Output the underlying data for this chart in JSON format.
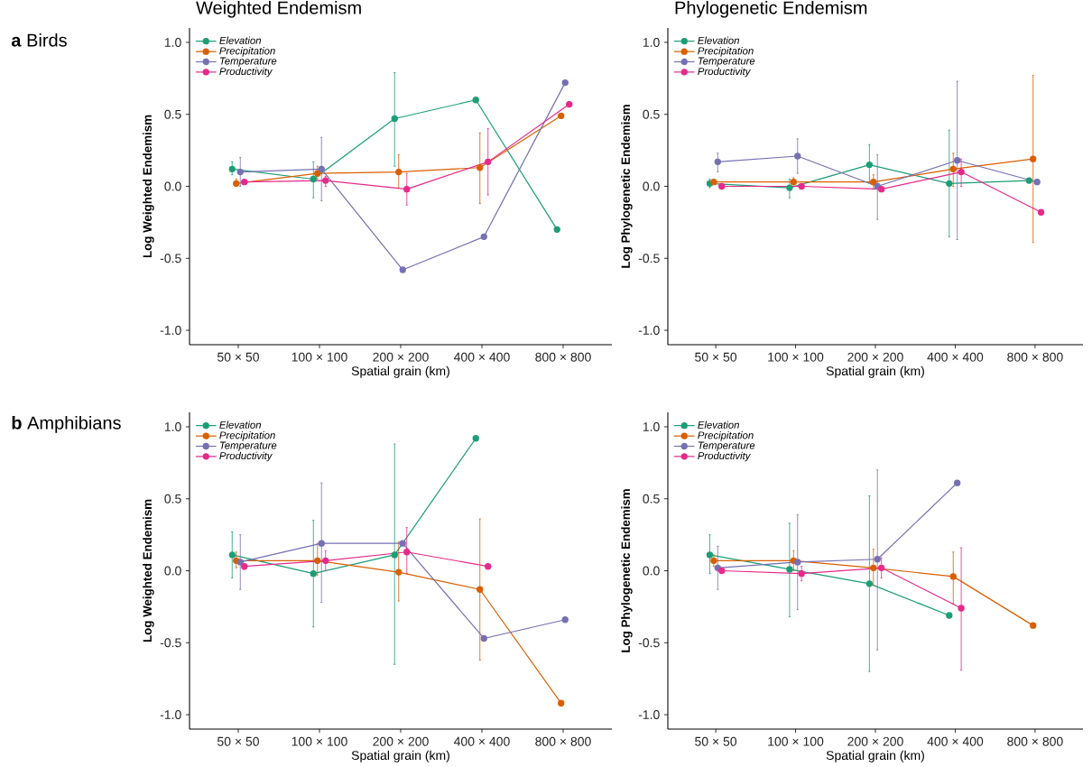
{
  "chart_data": [
    {
      "type": "line",
      "title": "Weighted Endemism",
      "annotations": [
        "**a** Birds"
      ],
      "xlabel": "Spatial grain (km)",
      "ylabel": "Log Weighted Endemism",
      "categories": [
        "50 × 50",
        "100 × 100",
        "200 × 200",
        "400 × 400",
        "800 × 800"
      ],
      "ylim": [
        -1.1,
        1.1
      ],
      "yticks": [
        {
          "value": -1,
          "label": "-1.0"
        },
        {
          "value": -0.5,
          "label": "-0.5"
        },
        {
          "value": 0,
          "label": "0.0"
        },
        {
          "value": 0.5,
          "label": "0.5"
        },
        {
          "value": 1,
          "label": "1.0"
        }
      ],
      "legend": "top left",
      "marker": "circle",
      "series": [
        {
          "name": "Elevation",
          "color": "#1b9e77",
          "values": [
            0.12,
            0.05,
            0.47,
            0.6,
            -0.3
          ],
          "errors": [
            [
              0.08,
              0.17
            ],
            [
              -0.08,
              0.17
            ],
            [
              0.14,
              0.79
            ],
            null,
            null
          ]
        },
        {
          "name": "Precipitation",
          "color": "#d95f02",
          "values": [
            0.02,
            0.09,
            0.1,
            0.13,
            0.49
          ],
          "errors": [
            [
              0.0,
              0.05
            ],
            [
              0.05,
              0.14
            ],
            [
              -0.01,
              0.22
            ],
            [
              -0.12,
              0.37
            ],
            null
          ]
        },
        {
          "name": "Temperature",
          "color": "#7570b3",
          "values": [
            0.1,
            0.12,
            -0.58,
            -0.35,
            0.72
          ],
          "errors": [
            [
              0.0,
              0.2
            ],
            [
              -0.1,
              0.34
            ],
            null,
            null,
            null
          ]
        },
        {
          "name": "Productivity",
          "color": "#e7298a",
          "values": [
            0.03,
            0.04,
            -0.02,
            0.17,
            0.57
          ],
          "errors": [
            null,
            [
              0.0,
              0.07
            ],
            [
              -0.13,
              0.09
            ],
            [
              -0.06,
              0.4
            ],
            null
          ]
        }
      ]
    },
    {
      "type": "line",
      "title": "Phylogenetic Endemism",
      "xlabel": "Spatial grain (km)",
      "ylabel": "Log Phylogenetic Endemism",
      "categories": [
        "50 × 50",
        "100 × 100",
        "200 × 200",
        "400 × 400",
        "800 × 800"
      ],
      "ylim": [
        -1.1,
        1.1
      ],
      "yticks": [
        {
          "value": -1,
          "label": "-1.0"
        },
        {
          "value": -0.5,
          "label": "-0.5"
        },
        {
          "value": 0,
          "label": "0.0"
        },
        {
          "value": 0.5,
          "label": "0.5"
        },
        {
          "value": 1,
          "label": "1.0"
        }
      ],
      "legend": "top left",
      "marker": "circle",
      "series": [
        {
          "name": "Elevation",
          "color": "#1b9e77",
          "values": [
            0.02,
            -0.01,
            0.15,
            0.02,
            0.04
          ],
          "errors": [
            [
              -0.01,
              0.05
            ],
            [
              -0.08,
              0.05
            ],
            [
              0.02,
              0.29
            ],
            [
              -0.35,
              0.39
            ],
            null
          ]
        },
        {
          "name": "Precipitation",
          "color": "#d95f02",
          "values": [
            0.03,
            0.03,
            0.03,
            0.12,
            0.19
          ],
          "errors": [
            null,
            [
              0.0,
              0.06
            ],
            [
              -0.02,
              0.08
            ],
            [
              0.0,
              0.23
            ],
            [
              -0.39,
              0.77
            ]
          ]
        },
        {
          "name": "Temperature",
          "color": "#7570b3",
          "values": [
            0.17,
            0.21,
            0.0,
            0.18,
            0.03
          ],
          "errors": [
            [
              0.1,
              0.23
            ],
            [
              0.09,
              0.33
            ],
            [
              -0.23,
              0.22
            ],
            [
              -0.37,
              0.73
            ],
            null
          ]
        },
        {
          "name": "Productivity",
          "color": "#e7298a",
          "values": [
            0.0,
            0.0,
            -0.02,
            0.1,
            -0.18
          ],
          "errors": [
            null,
            null,
            null,
            [
              0.0,
              0.19
            ],
            null
          ]
        }
      ]
    },
    {
      "type": "line",
      "annotations": [
        "**b** Amphibians"
      ],
      "xlabel": "Spatial grain (km)",
      "ylabel": "Log Weighted Endemism",
      "categories": [
        "50 × 50",
        "100 × 100",
        "200 × 200",
        "400 × 400",
        "800 × 800"
      ],
      "ylim": [
        -1.1,
        1.1
      ],
      "yticks": [
        {
          "value": -1,
          "label": "-1.0"
        },
        {
          "value": -0.5,
          "label": "-0.5"
        },
        {
          "value": 0,
          "label": "0.0"
        },
        {
          "value": 0.5,
          "label": "0.5"
        },
        {
          "value": 1,
          "label": "1.0"
        }
      ],
      "legend": "top left",
      "marker": "circle",
      "series": [
        {
          "name": "Elevation",
          "color": "#1b9e77",
          "values": [
            0.11,
            -0.02,
            0.11,
            0.92,
            null
          ],
          "errors": [
            [
              -0.05,
              0.27
            ],
            [
              -0.39,
              0.35
            ],
            [
              -0.65,
              0.88
            ],
            null,
            null
          ]
        },
        {
          "name": "Precipitation",
          "color": "#d95f02",
          "values": [
            0.07,
            0.07,
            -0.01,
            -0.13,
            -0.92
          ],
          "errors": [
            [
              0.02,
              0.13
            ],
            [
              -0.03,
              0.19
            ],
            [
              -0.21,
              0.2
            ],
            [
              -0.62,
              0.36
            ],
            null
          ]
        },
        {
          "name": "Temperature",
          "color": "#7570b3",
          "values": [
            0.06,
            0.19,
            0.19,
            -0.47,
            -0.34
          ],
          "errors": [
            [
              -0.13,
              0.25
            ],
            [
              -0.22,
              0.61
            ],
            null,
            null,
            null
          ]
        },
        {
          "name": "Productivity",
          "color": "#e7298a",
          "values": [
            0.03,
            0.07,
            0.13,
            0.03,
            null
          ],
          "errors": [
            [
              0.01,
              0.05
            ],
            [
              0.0,
              0.14
            ],
            [
              -0.02,
              0.3
            ],
            null,
            null
          ]
        }
      ]
    },
    {
      "type": "line",
      "xlabel": "Spatial grain (km)",
      "ylabel": "Log Phylogenetic Endemism",
      "categories": [
        "50 × 50",
        "100 × 100",
        "200 × 200",
        "400 × 400",
        "800 × 800"
      ],
      "ylim": [
        -1.1,
        1.1
      ],
      "yticks": [
        {
          "value": -1,
          "label": "-1.0"
        },
        {
          "value": -0.5,
          "label": "-0.5"
        },
        {
          "value": 0,
          "label": "0.0"
        },
        {
          "value": 0.5,
          "label": "0.5"
        },
        {
          "value": 1,
          "label": "1.0"
        }
      ],
      "legend": "top left",
      "marker": "circle",
      "series": [
        {
          "name": "Elevation",
          "color": "#1b9e77",
          "values": [
            0.11,
            0.01,
            -0.09,
            -0.31,
            null
          ],
          "errors": [
            [
              -0.02,
              0.25
            ],
            [
              -0.32,
              0.33
            ],
            [
              -0.7,
              0.52
            ],
            null,
            null
          ]
        },
        {
          "name": "Precipitation",
          "color": "#d95f02",
          "values": [
            0.07,
            0.07,
            0.02,
            -0.04,
            -0.38
          ],
          "errors": [
            [
              0.03,
              0.11
            ],
            [
              0.0,
              0.14
            ],
            [
              -0.1,
              0.15
            ],
            [
              -0.23,
              0.13
            ],
            null
          ]
        },
        {
          "name": "Temperature",
          "color": "#7570b3",
          "values": [
            0.02,
            0.06,
            0.08,
            0.61,
            null
          ],
          "errors": [
            [
              -0.13,
              0.17
            ],
            [
              -0.27,
              0.39
            ],
            [
              -0.55,
              0.7
            ],
            null,
            null
          ]
        },
        {
          "name": "Productivity",
          "color": "#e7298a",
          "values": [
            0.0,
            -0.02,
            0.02,
            -0.26,
            null
          ],
          "errors": [
            null,
            [
              -0.07,
              0.03
            ],
            [
              -0.05,
              0.09
            ],
            [
              -0.69,
              0.16
            ],
            null
          ]
        }
      ]
    }
  ]
}
